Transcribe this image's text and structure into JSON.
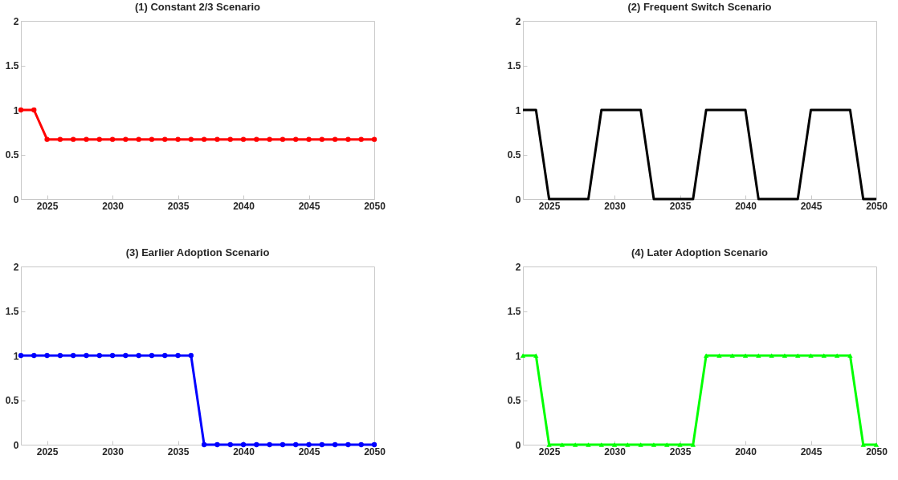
{
  "chart_data": [
    {
      "type": "line",
      "title": "(1) Constant 2/3 Scenario",
      "x": [
        2023,
        2024,
        2025,
        2026,
        2027,
        2028,
        2029,
        2030,
        2031,
        2032,
        2033,
        2034,
        2035,
        2036,
        2037,
        2038,
        2039,
        2040,
        2041,
        2042,
        2043,
        2044,
        2045,
        2046,
        2047,
        2048,
        2049,
        2050
      ],
      "series": [
        {
          "color": "#ff0000",
          "values": [
            1,
            1,
            0.67,
            0.67,
            0.67,
            0.67,
            0.67,
            0.67,
            0.67,
            0.67,
            0.67,
            0.67,
            0.67,
            0.67,
            0.67,
            0.67,
            0.67,
            0.67,
            0.67,
            0.67,
            0.67,
            0.67,
            0.67,
            0.67,
            0.67,
            0.67,
            0.67,
            0.67
          ]
        }
      ],
      "marker": "circle",
      "xlim": [
        2023,
        2050
      ],
      "xticks": [
        2025,
        2030,
        2035,
        2040,
        2045,
        2050
      ],
      "ylim": [
        0,
        2
      ],
      "yticks": [
        0,
        0.5,
        1,
        1.5,
        2
      ]
    },
    {
      "type": "line",
      "title": "(2) Frequent Switch Scenario",
      "x": [
        2023,
        2024,
        2025,
        2026,
        2027,
        2028,
        2029,
        2030,
        2031,
        2032,
        2033,
        2034,
        2035,
        2036,
        2037,
        2038,
        2039,
        2040,
        2041,
        2042,
        2043,
        2044,
        2045,
        2046,
        2047,
        2048,
        2049,
        2050
      ],
      "series": [
        {
          "color": "#000000",
          "values": [
            1,
            1,
            0,
            0,
            0,
            0,
            1,
            1,
            1,
            1,
            0,
            0,
            0,
            0,
            1,
            1,
            1,
            1,
            0,
            0,
            0,
            0,
            1,
            1,
            1,
            1,
            0,
            0
          ]
        }
      ],
      "xlim": [
        2023,
        2050
      ],
      "xticks": [
        2025,
        2030,
        2035,
        2040,
        2045,
        2050
      ],
      "ylim": [
        0,
        2
      ],
      "yticks": [
        0,
        0.5,
        1,
        1.5,
        2
      ]
    },
    {
      "type": "line",
      "title": "(3) Earlier Adoption Scenario",
      "x": [
        2023,
        2024,
        2025,
        2026,
        2027,
        2028,
        2029,
        2030,
        2031,
        2032,
        2033,
        2034,
        2035,
        2036,
        2037,
        2038,
        2039,
        2040,
        2041,
        2042,
        2043,
        2044,
        2045,
        2046,
        2047,
        2048,
        2049,
        2050
      ],
      "series": [
        {
          "color": "#0000ff",
          "values": [
            1,
            1,
            1,
            1,
            1,
            1,
            1,
            1,
            1,
            1,
            1,
            1,
            1,
            1,
            0,
            0,
            0,
            0,
            0,
            0,
            0,
            0,
            0,
            0,
            0,
            0,
            0,
            0
          ]
        }
      ],
      "marker": "circle",
      "xlim": [
        2023,
        2050
      ],
      "xticks": [
        2025,
        2030,
        2035,
        2040,
        2045,
        2050
      ],
      "ylim": [
        0,
        2
      ],
      "yticks": [
        0,
        0.5,
        1,
        1.5,
        2
      ]
    },
    {
      "type": "line",
      "title": "(4) Later Adoption Scenario",
      "x": [
        2023,
        2024,
        2025,
        2026,
        2027,
        2028,
        2029,
        2030,
        2031,
        2032,
        2033,
        2034,
        2035,
        2036,
        2037,
        2038,
        2039,
        2040,
        2041,
        2042,
        2043,
        2044,
        2045,
        2046,
        2047,
        2048,
        2049,
        2050
      ],
      "series": [
        {
          "color": "#00ff00",
          "values": [
            1,
            1,
            0,
            0,
            0,
            0,
            0,
            0,
            0,
            0,
            0,
            0,
            0,
            0,
            1,
            1,
            1,
            1,
            1,
            1,
            1,
            1,
            1,
            1,
            1,
            1,
            0,
            0
          ]
        }
      ],
      "marker": "triangle",
      "xlim": [
        2023,
        2050
      ],
      "xticks": [
        2025,
        2030,
        2035,
        2040,
        2045,
        2050
      ],
      "ylim": [
        0,
        2
      ],
      "yticks": [
        0,
        0.5,
        1,
        1.5,
        2
      ]
    }
  ]
}
